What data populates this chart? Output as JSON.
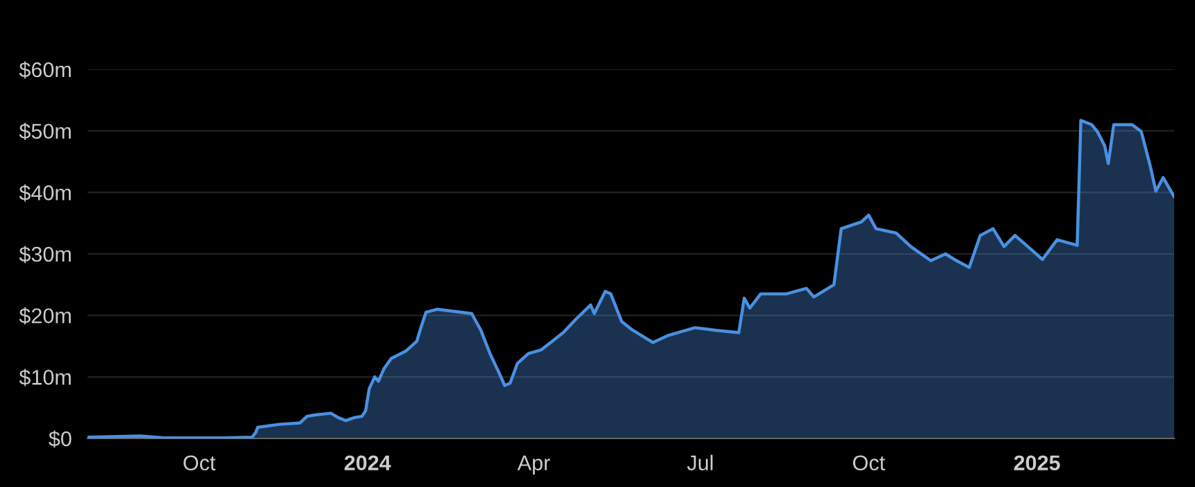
{
  "chart_data": {
    "type": "area",
    "x": [
      "2023-08-01",
      "2023-08-30",
      "2023-09-12",
      "2023-10-14",
      "2023-10-30",
      "2023-11-01",
      "2023-11-02",
      "2023-11-14",
      "2023-11-25",
      "2023-11-29",
      "2023-12-03",
      "2023-12-12",
      "2023-12-16",
      "2023-12-20",
      "2023-12-25",
      "2023-12-29",
      "2023-12-31",
      "2024-01-02",
      "2024-01-05",
      "2024-01-07",
      "2024-01-10",
      "2024-01-14",
      "2024-01-22",
      "2024-01-28",
      "2024-01-30",
      "2024-02-02",
      "2024-02-08",
      "2024-02-27",
      "2024-03-03",
      "2024-03-08",
      "2024-03-14",
      "2024-03-16",
      "2024-03-19",
      "2024-03-23",
      "2024-03-29",
      "2024-04-05",
      "2024-04-11",
      "2024-04-17",
      "2024-04-24",
      "2024-05-02",
      "2024-05-04",
      "2024-05-10",
      "2024-05-13",
      "2024-05-19",
      "2024-05-25",
      "2024-06-05",
      "2024-06-13",
      "2024-06-28",
      "2024-07-09",
      "2024-07-22",
      "2024-07-25",
      "2024-07-28",
      "2024-08-03",
      "2024-08-17",
      "2024-08-28",
      "2024-09-01",
      "2024-09-06",
      "2024-09-12",
      "2024-09-16",
      "2024-09-27",
      "2024-10-01",
      "2024-10-05",
      "2024-10-16",
      "2024-10-24",
      "2024-11-04",
      "2024-11-12",
      "2024-11-18",
      "2024-11-25",
      "2024-12-01",
      "2024-12-08",
      "2024-12-14",
      "2024-12-20",
      "2024-12-27",
      "2025-01-04",
      "2025-01-12",
      "2025-01-23",
      "2025-01-25",
      "2025-01-31",
      "2025-02-03",
      "2025-02-07",
      "2025-02-09",
      "2025-02-12",
      "2025-02-22",
      "2025-02-27",
      "2025-03-04",
      "2025-03-07",
      "2025-03-11",
      "2025-03-17"
    ],
    "series": [
      {
        "color": "#4a90e2",
        "values": [
          0.2,
          0.4,
          0.1,
          0.1,
          0.2,
          1,
          1.8,
          2.3,
          2.5,
          3.6,
          3.8,
          4.1,
          3.4,
          2.9,
          3.4,
          3.6,
          4.5,
          8.1,
          10,
          9.3,
          11.3,
          13,
          14.2,
          15.8,
          17.8,
          20.5,
          21,
          20.3,
          17.6,
          13.8,
          10,
          8.6,
          9,
          12.2,
          13.8,
          14.4,
          15.8,
          17.2,
          19.4,
          21.7,
          20.3,
          23.9,
          23.5,
          19,
          17.6,
          15.6,
          16.7,
          18,
          17.6,
          17.2,
          22.8,
          21.2,
          23.5,
          23.5,
          24.4,
          23,
          23.9,
          25,
          34.1,
          35.2,
          36.3,
          34.1,
          33.4,
          31.2,
          28.9,
          30,
          28.9,
          27.8,
          33,
          34.1,
          31.2,
          33,
          31.2,
          29.1,
          32.3,
          31.4,
          51.7,
          51,
          49.9,
          47.6,
          44.7,
          51,
          51,
          49.9,
          44.2,
          40.2,
          42.4,
          39.3
        ]
      }
    ],
    "xlim": [
      "2023-08-01",
      "2025-03-17"
    ],
    "xticks": [
      {
        "value": "2023-10-01",
        "label": "Oct"
      },
      {
        "value": "2024-01-01",
        "label": "2024"
      },
      {
        "value": "2024-04-01",
        "label": "Apr"
      },
      {
        "value": "2024-07-01",
        "label": "Jul"
      },
      {
        "value": "2024-10-01",
        "label": "Oct"
      },
      {
        "value": "2025-01-01",
        "label": "2025"
      }
    ],
    "ylim": [
      0,
      60
    ],
    "yticks": [
      {
        "value": 0,
        "label": "$0"
      },
      {
        "value": 10,
        "label": "$10m"
      },
      {
        "value": 20,
        "label": "$20m"
      },
      {
        "value": 30,
        "label": "$30m"
      },
      {
        "value": 40,
        "label": "$40m"
      },
      {
        "value": 50,
        "label": "$50m"
      },
      {
        "value": 60,
        "label": "$60m"
      }
    ],
    "grid": "y"
  }
}
